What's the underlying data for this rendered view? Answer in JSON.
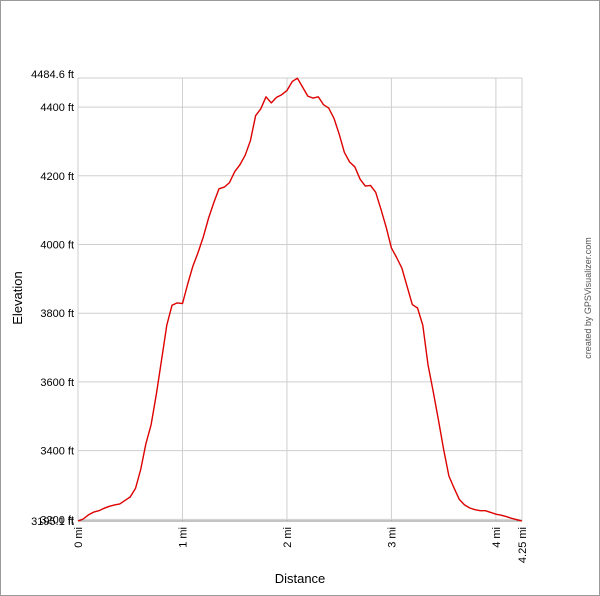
{
  "chart_data": {
    "type": "line",
    "xlabel": "Distance",
    "ylabel": "Elevation",
    "xlim": [
      0,
      4.25
    ],
    "ylim": [
      3195.1,
      4484.6
    ],
    "grid": true,
    "x_ticks": [
      {
        "value": 0,
        "label": "0 mi"
      },
      {
        "value": 1,
        "label": "1 mi"
      },
      {
        "value": 2,
        "label": "2 mi"
      },
      {
        "value": 3,
        "label": "3 mi"
      },
      {
        "value": 4,
        "label": "4 mi"
      },
      {
        "value": 4.25,
        "label": "4.25 mi"
      }
    ],
    "y_ticks": [
      {
        "value": 3195.1,
        "label": "3195.1 ft"
      },
      {
        "value": 3200,
        "label": "3200 ft"
      },
      {
        "value": 3400,
        "label": "3400 ft"
      },
      {
        "value": 3600,
        "label": "3600 ft"
      },
      {
        "value": 3800,
        "label": "3800 ft"
      },
      {
        "value": 4000,
        "label": "4000 ft"
      },
      {
        "value": 4200,
        "label": "4200 ft"
      },
      {
        "value": 4400,
        "label": "4400 ft"
      },
      {
        "value": 4484.6,
        "label": "4484.6 ft"
      }
    ],
    "series": [
      {
        "color": "#dd0000",
        "x": [
          0,
          0.05,
          0.1,
          0.15,
          0.2,
          0.25,
          0.3,
          0.35,
          0.4,
          0.45,
          0.5,
          0.55,
          0.6,
          0.65,
          0.7,
          0.75,
          0.8,
          0.85,
          0.9,
          0.95,
          1.0,
          1.05,
          1.1,
          1.15,
          1.2,
          1.25,
          1.3,
          1.35,
          1.4,
          1.45,
          1.5,
          1.55,
          1.6,
          1.65,
          1.7,
          1.75,
          1.8,
          1.85,
          1.9,
          1.95,
          2.0,
          2.05,
          2.1,
          2.15,
          2.2,
          2.25,
          2.3,
          2.35,
          2.4,
          2.45,
          2.5,
          2.55,
          2.6,
          2.65,
          2.7,
          2.75,
          2.8,
          2.85,
          2.9,
          2.95,
          3.0,
          3.05,
          3.1,
          3.15,
          3.2,
          3.25,
          3.3,
          3.35,
          3.4,
          3.45,
          3.5,
          3.55,
          3.6,
          3.65,
          3.7,
          3.75,
          3.8,
          3.85,
          3.9,
          3.95,
          4.0,
          4.05,
          4.1,
          4.15,
          4.2,
          4.25
        ],
        "y": [
          3195,
          3201,
          3213,
          3221,
          3225,
          3232,
          3238,
          3242,
          3245,
          3255,
          3265,
          3290,
          3345,
          3420,
          3475,
          3565,
          3665,
          3765,
          3823,
          3830,
          3828,
          3885,
          3937,
          3977,
          4023,
          4077,
          4122,
          4162,
          4167,
          4180,
          4212,
          4232,
          4260,
          4302,
          4375,
          4395,
          4430,
          4412,
          4428,
          4436,
          4448,
          4474,
          4484,
          4458,
          4432,
          4426,
          4430,
          4407,
          4397,
          4367,
          4321,
          4268,
          4240,
          4226,
          4190,
          4170,
          4172,
          4152,
          4102,
          4050,
          3990,
          3962,
          3931,
          3878,
          3825,
          3815,
          3765,
          3650,
          3572,
          3490,
          3404,
          3326,
          3291,
          3258,
          3242,
          3233,
          3228,
          3225,
          3225,
          3220,
          3215,
          3212,
          3208,
          3203,
          3199,
          3195
        ]
      }
    ]
  },
  "credit": "created by GPSVisualizer.com",
  "colors": {
    "line": "#dd0000",
    "grid": "#cfcfcf",
    "frame": "#9a9a9a"
  }
}
